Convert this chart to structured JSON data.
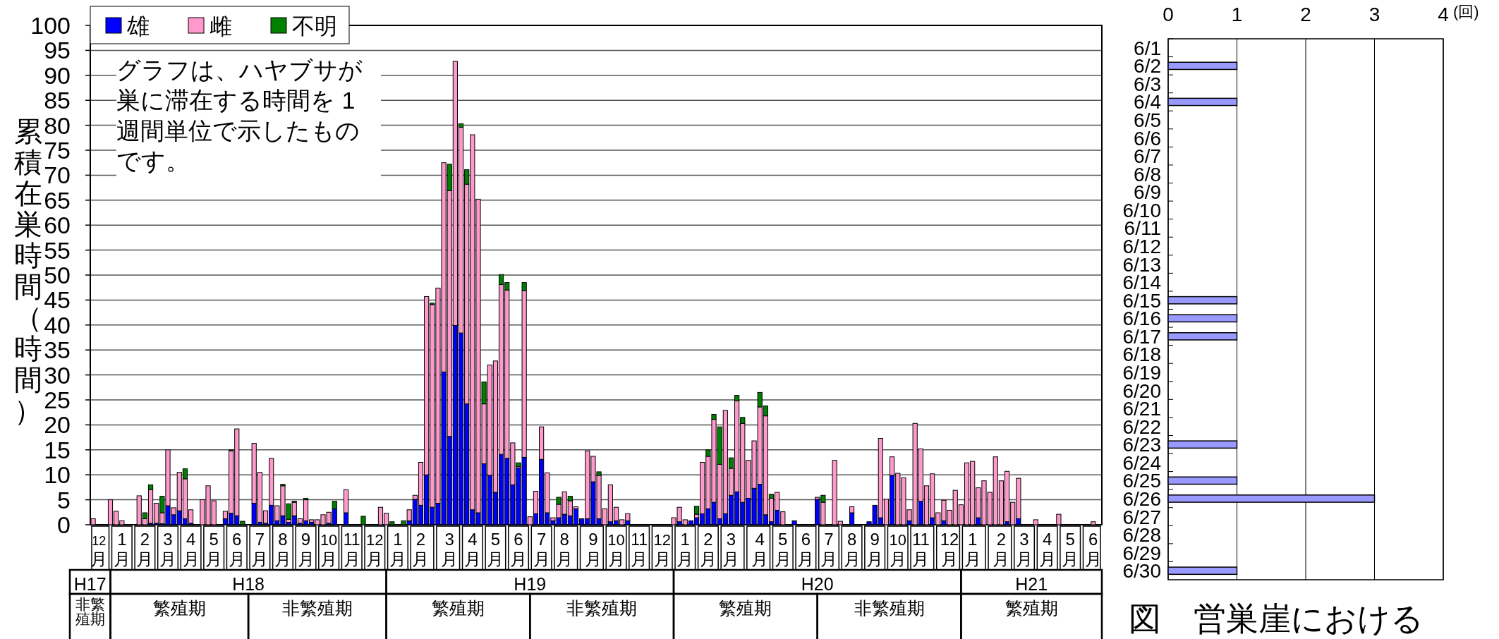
{
  "chart_data": [
    {
      "type": "bar",
      "stacked": true,
      "ylabel": "累積在巣時間（時間）",
      "ylim": [
        0,
        100
      ],
      "yticks": [
        0,
        5,
        10,
        15,
        20,
        25,
        30,
        35,
        40,
        45,
        50,
        55,
        60,
        65,
        70,
        75,
        80,
        85,
        90,
        95,
        100
      ],
      "grid": "y",
      "legend": "top left",
      "categories": [
        null,
        "12月",
        null,
        null,
        null,
        "1月",
        null,
        null,
        null,
        "2月",
        null,
        null,
        null,
        "3月",
        null,
        null,
        null,
        "4月",
        null,
        null,
        null,
        "5月",
        null,
        null,
        null,
        "6月",
        null,
        null,
        null,
        "7月",
        null,
        null,
        null,
        "8月",
        null,
        null,
        null,
        "9月",
        null,
        null,
        null,
        "10月",
        null,
        null,
        null,
        "11月",
        null,
        null,
        null,
        "12月",
        null,
        null,
        null,
        "1月",
        null,
        null,
        null,
        "2月",
        null,
        null,
        null,
        null,
        "3月",
        null,
        null,
        null,
        "4月",
        null,
        null,
        null,
        "5月",
        null,
        null,
        null,
        "6月",
        null,
        null,
        null,
        "7月",
        null,
        null,
        null,
        "8月",
        null,
        null,
        null,
        null,
        "9月",
        null,
        null,
        null,
        "10月",
        null,
        null,
        null,
        "11月",
        null,
        null,
        null,
        "12月",
        null,
        null,
        null,
        "1月",
        null,
        null,
        null,
        "2月",
        null,
        null,
        null,
        "3月",
        null,
        null,
        null,
        null,
        "4月",
        null,
        null,
        null,
        "5月",
        null,
        null,
        null,
        "6月",
        null,
        null,
        null,
        "7月",
        null,
        null,
        null,
        "8月",
        null,
        null,
        null,
        "9月",
        null,
        null,
        null,
        "10月",
        null,
        null,
        null,
        "11月",
        null,
        null,
        null,
        null,
        "12月",
        null,
        null,
        null,
        "1月",
        null,
        null,
        null,
        null,
        "2月",
        null,
        null,
        null,
        "3月",
        null,
        null,
        null,
        "4月",
        null,
        null,
        null,
        "5月",
        null,
        null,
        null,
        "6月",
        null
      ],
      "series": [
        {
          "name": "雄",
          "color": "#0000ff",
          "values": [
            0,
            0,
            0,
            0,
            0,
            0,
            0,
            0,
            0,
            0,
            0.3,
            0.3,
            0.2,
            3.8,
            2,
            2.8,
            1.2,
            0.3,
            0,
            0,
            0,
            0,
            0,
            1.2,
            2.3,
            1.8,
            0,
            0,
            4.3,
            0.5,
            0.3,
            3.9,
            0.8,
            1.8,
            0.5,
            1.8,
            0.3,
            0.8,
            0.5,
            0,
            0,
            0.3,
            3.2,
            0,
            2.4,
            0,
            0,
            0,
            0,
            0,
            0,
            0,
            0,
            0,
            0,
            0.8,
            5.1,
            3.9,
            10,
            3.5,
            4.3,
            30.6,
            17.7,
            39.9,
            38.4,
            24.2,
            3,
            2.4,
            12.2,
            9.9,
            6.5,
            14.1,
            13.3,
            8,
            11.4,
            13.5,
            0,
            2.2,
            13.1,
            2.4,
            0.8,
            1.4,
            2.1,
            1.8,
            3.2,
            1.2,
            1.2,
            8.6,
            1.2,
            0,
            0.6,
            0.8,
            0,
            0.8,
            0,
            0,
            0,
            0,
            0,
            0,
            0,
            0,
            0.6,
            0,
            0.8,
            1.4,
            2.2,
            3.2,
            4.5,
            1.2,
            2.2,
            5.9,
            6.6,
            4.5,
            5.3,
            7.3,
            8.1,
            2,
            0.6,
            2.9,
            0,
            0,
            0.8,
            0,
            0,
            0,
            5.1,
            0,
            0,
            0,
            0,
            0,
            2.4,
            0,
            0,
            0.6,
            3.9,
            1.4,
            0,
            9.9,
            0,
            0,
            0.8,
            0,
            4.7,
            0,
            1.4,
            0,
            0.8,
            0,
            0,
            0,
            0,
            0,
            1.4,
            0,
            0,
            0,
            0,
            0.6,
            0,
            1.2,
            0,
            0,
            0,
            0,
            0,
            0,
            0,
            0,
            0,
            0,
            0,
            0,
            0,
            0
          ]
        },
        {
          "name": "雌",
          "color": "#ff99cc",
          "values": [
            1.2,
            0,
            0,
            5,
            2.7,
            0.8,
            0,
            0,
            5.8,
            1.2,
            6.7,
            4,
            2.2,
            11.2,
            1.4,
            7.7,
            8,
            2.7,
            0,
            5,
            7.8,
            4.8,
            0,
            1.5,
            12.5,
            17.4,
            0,
            0,
            12,
            10,
            2.5,
            9.4,
            3,
            6,
            0.6,
            2.7,
            0.9,
            4.2,
            0.5,
            1,
            2,
            2.2,
            0,
            0,
            4.6,
            0,
            0,
            0,
            0,
            0,
            3.5,
            2.3,
            0,
            0,
            0,
            2.2,
            0.8,
            8.6,
            35.7,
            40.6,
            43.1,
            41.9,
            49.2,
            52.9,
            41.2,
            44,
            75.1,
            62.8,
            12,
            22.1,
            26.3,
            34,
            33.7,
            8.4,
            0.3,
            33.4,
            1.6,
            4.5,
            6.5,
            8,
            0.6,
            2.7,
            4.5,
            3,
            0.4,
            0,
            13.6,
            5.1,
            8.7,
            3.2,
            7.4,
            2.7,
            1,
            1.4,
            0,
            0,
            0,
            0,
            0,
            0,
            0,
            1.4,
            2.9,
            1,
            0,
            0.7,
            10.3,
            10.5,
            16.6,
            10.9,
            20.7,
            5.4,
            18.2,
            15.8,
            7.6,
            9.5,
            15.5,
            19.8,
            4.7,
            3.6,
            2.6,
            0,
            0,
            0,
            0,
            0,
            0.4,
            4.5,
            0,
            12.9,
            0.7,
            0,
            1.2,
            0,
            0,
            0,
            0,
            15.9,
            5.1,
            3.7,
            10.3,
            9.4,
            2.2,
            20.3,
            10.5,
            7.8,
            8.8,
            2.4,
            4.1,
            2.9,
            6.9,
            4,
            12.4,
            12.7,
            6,
            8.8,
            6.5,
            13.6,
            8.8,
            10.1,
            4.5,
            8.1,
            0,
            0,
            1,
            0,
            0,
            0,
            2.1,
            0,
            0,
            0,
            0,
            0,
            0.6,
            0
          ]
        },
        {
          "name": "不明",
          "color": "#008000",
          "values": [
            0,
            0,
            0,
            0,
            0,
            0,
            0,
            0,
            0,
            1.2,
            1,
            0,
            3.3,
            0,
            0,
            0,
            2,
            0,
            0,
            0,
            0,
            0,
            0,
            0,
            0.2,
            0,
            0.7,
            0,
            0,
            0,
            0,
            0,
            0,
            0.3,
            3.1,
            0.2,
            0,
            0.3,
            0,
            0,
            0,
            0,
            1.5,
            0,
            0,
            0,
            0,
            1.7,
            0,
            0,
            0,
            0,
            0.6,
            0,
            0.8,
            0,
            0,
            0,
            0,
            0.3,
            0,
            0,
            5.3,
            0,
            0.7,
            2.9,
            0,
            0,
            4.4,
            0,
            0,
            2,
            1.5,
            0,
            0.7,
            1.6,
            0,
            0,
            0,
            0,
            0,
            1.4,
            0,
            0.9,
            0,
            0,
            0,
            0,
            0.7,
            0,
            0,
            0,
            0,
            0,
            0,
            0,
            0,
            0,
            0,
            0,
            0,
            0,
            0,
            0,
            0,
            1.6,
            0,
            1.3,
            1,
            7.5,
            0,
            2.1,
            1.1,
            1.2,
            0,
            0,
            2.9,
            2,
            0.8,
            0,
            0,
            0,
            0,
            0,
            0,
            0,
            0,
            1.4,
            0,
            0,
            0,
            0,
            0,
            0,
            0,
            0,
            0,
            0,
            0,
            0,
            0,
            0,
            0,
            0,
            0,
            0,
            0,
            0,
            0,
            0,
            0,
            0,
            0,
            0,
            0,
            0,
            0,
            0,
            0,
            0,
            0,
            0,
            0,
            0,
            0,
            0,
            0,
            0,
            0,
            0,
            0,
            0,
            0,
            0,
            0,
            0
          ]
        }
      ],
      "annotations": [
        "グラフは、ハヤブサが巣に滞在する時間を 1 週間単位で示したものです。",
        "H17",
        "H18",
        "H19",
        "H20",
        "H21",
        "非繁殖期",
        "繁殖期",
        "非繁殖期",
        "繁殖期",
        "非繁殖期",
        "繁殖期",
        "非繁殖期",
        "繁殖期"
      ]
    },
    {
      "type": "bar",
      "orientation": "horizontal",
      "xlabel": "(回)",
      "xlim": [
        0,
        4
      ],
      "xticks": [
        0,
        1,
        2,
        3,
        4
      ],
      "grid": "x",
      "color": "#9999ff",
      "categories": [
        "6/1",
        "6/2",
        "6/3",
        "6/4",
        "6/5",
        "6/6",
        "6/7",
        "6/8",
        "6/9",
        "6/10",
        "6/11",
        "6/12",
        "6/13",
        "6/14",
        "6/15",
        "6/16",
        "6/17",
        "6/18",
        "6/19",
        "6/20",
        "6/21",
        "6/22",
        "6/23",
        "6/24",
        "6/25",
        "6/26",
        "6/27",
        "6/28",
        "6/29",
        "6/30"
      ],
      "values": [
        0,
        1,
        0,
        1,
        0,
        0,
        0,
        0,
        0,
        0,
        0,
        0,
        0,
        0,
        1,
        1,
        1,
        0,
        0,
        0,
        0,
        0,
        1,
        0,
        1,
        3,
        0,
        0,
        0,
        1
      ],
      "annotations": [
        "図　営巣崖における"
      ]
    }
  ]
}
